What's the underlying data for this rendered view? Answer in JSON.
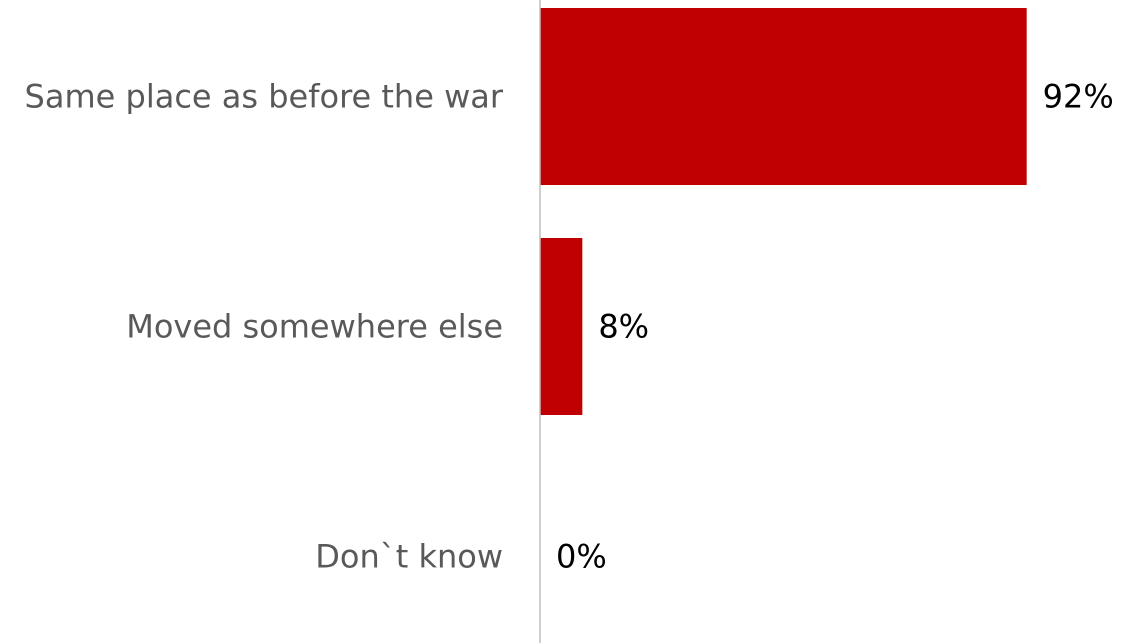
{
  "chart_data": {
    "type": "bar",
    "orientation": "horizontal",
    "categories": [
      "Same place as before the war",
      "Moved somewhere else",
      "Don`t know"
    ],
    "values": [
      92,
      8,
      0
    ],
    "value_labels": [
      "92%",
      "8%",
      "0%"
    ],
    "xlim": [
      0,
      100
    ],
    "grid": false,
    "legend": "none",
    "bar_color": "#C00000",
    "axis_color": "#BFBFBF",
    "category_label_color": "#595959",
    "value_label_color": "#000000"
  }
}
